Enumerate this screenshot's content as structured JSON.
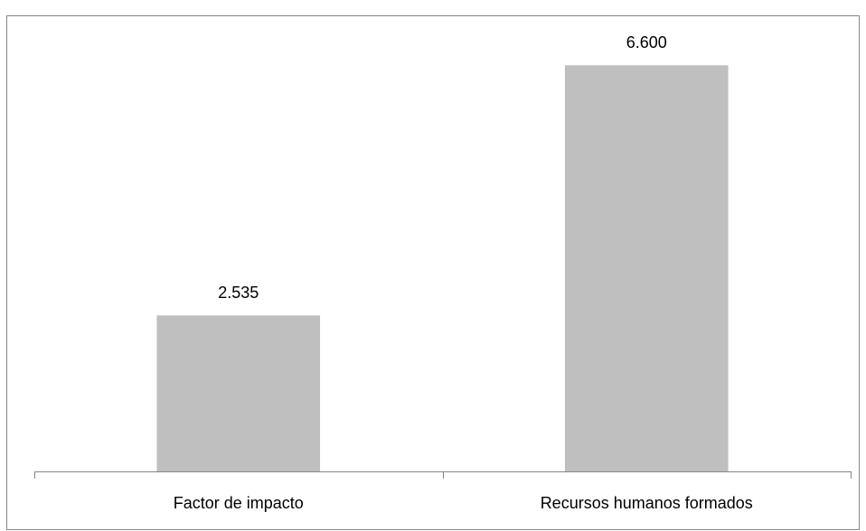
{
  "chart_data": {
    "type": "bar",
    "categories": [
      "Factor de impacto",
      "Recursos humanos formados"
    ],
    "values": [
      2.535,
      6.6
    ],
    "value_labels": [
      "2.535",
      "6.600"
    ],
    "color": "#bfbfbf",
    "ylim": [
      0,
      7
    ],
    "grid": false
  }
}
